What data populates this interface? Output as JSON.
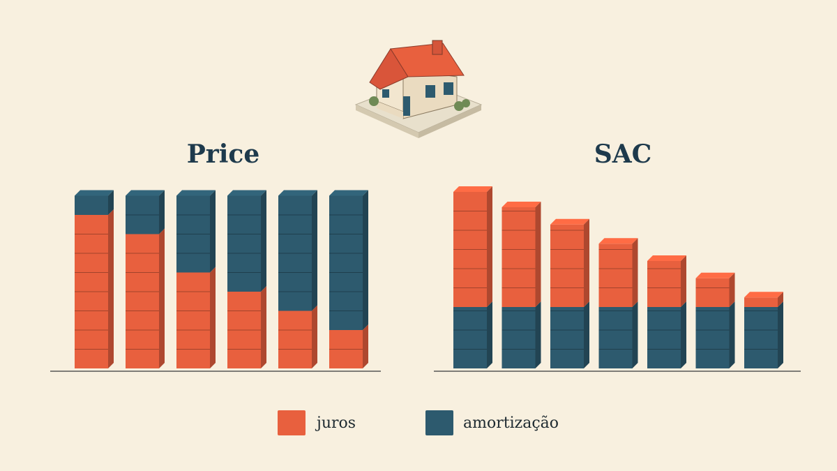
{
  "chart_data": [
    {
      "type": "stacked-blocks",
      "title": "Price",
      "series": [
        {
          "name": "juros",
          "color": "#e8603e",
          "values": [
            8,
            7,
            5,
            4,
            3,
            2
          ]
        },
        {
          "name": "amortização",
          "color": "#2d5a6e",
          "values": [
            1,
            2,
            4,
            5,
            6,
            7
          ]
        }
      ]
    },
    {
      "type": "stacked-blocks",
      "title": "SAC",
      "series": [
        {
          "name": "amortização",
          "color": "#2d5a6e",
          "values": [
            3.2,
            3.2,
            3.2,
            3.2,
            3.2,
            3.2,
            3.2
          ]
        },
        {
          "name": "juros",
          "color": "#e8603e",
          "values": [
            6,
            5.2,
            4.3,
            3.3,
            2.4,
            1.5,
            0.5
          ]
        }
      ]
    }
  ]
}
